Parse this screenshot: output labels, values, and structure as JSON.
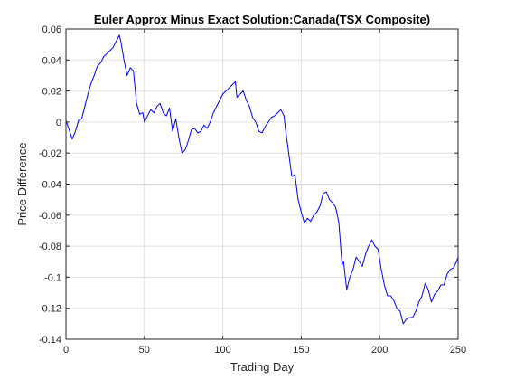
{
  "chart_data": {
    "type": "line",
    "title": "Euler Approx Minus Exact Solution:Canada(TSX Composite)",
    "xlabel": "Trading Day",
    "ylabel": "Price Difference",
    "xlim": [
      0,
      250
    ],
    "ylim": [
      -0.14,
      0.06
    ],
    "xticks": [
      "0",
      "50",
      "100",
      "150",
      "200",
      "250"
    ],
    "yticks": [
      "0.06",
      "0.04",
      "0.02",
      "0",
      "-0.02",
      "-0.04",
      "-0.06",
      "-0.08",
      "-0.1",
      "-0.12",
      "-0.14"
    ],
    "grid": true,
    "series": [
      {
        "color": "#0000ff",
        "x": [
          0,
          2,
          4,
          6,
          8,
          10,
          12,
          14,
          16,
          18,
          20,
          22,
          24,
          26,
          28,
          30,
          32,
          34,
          35,
          37,
          39,
          41,
          43,
          45,
          47,
          49,
          50,
          52,
          54,
          56,
          58,
          60,
          62,
          64,
          66,
          68,
          70,
          72,
          74,
          76,
          78,
          80,
          82,
          84,
          86,
          88,
          90,
          92,
          94,
          96,
          98,
          100,
          102,
          104,
          106,
          108,
          109,
          111,
          113,
          115,
          117,
          119,
          121,
          123,
          125,
          127,
          129,
          131,
          133,
          135,
          137,
          139,
          140,
          142,
          144,
          146,
          148,
          150,
          152,
          154,
          156,
          158,
          160,
          162,
          164,
          166,
          168,
          170,
          172,
          174,
          176,
          177,
          179,
          181,
          183,
          185,
          187,
          189,
          191,
          193,
          195,
          197,
          199,
          201,
          203,
          205,
          207,
          209,
          211,
          213,
          215,
          217,
          219,
          221,
          223,
          225,
          227,
          229,
          231,
          233,
          235,
          237,
          239,
          241,
          243,
          245,
          247,
          249,
          250
        ],
        "y": [
          0.001,
          -0.005,
          -0.011,
          -0.006,
          0.001,
          0.002,
          0.01,
          0.018,
          0.025,
          0.03,
          0.036,
          0.038,
          0.042,
          0.044,
          0.046,
          0.048,
          0.052,
          0.056,
          0.052,
          0.04,
          0.03,
          0.035,
          0.033,
          0.012,
          0.005,
          0.006,
          0.0,
          0.004,
          0.008,
          0.006,
          0.01,
          0.012,
          0.006,
          0.004,
          0.009,
          -0.006,
          0.002,
          -0.01,
          -0.02,
          -0.018,
          -0.012,
          -0.005,
          -0.004,
          -0.007,
          -0.006,
          -0.002,
          -0.004,
          0.0,
          0.006,
          0.01,
          0.014,
          0.018,
          0.02,
          0.022,
          0.024,
          0.026,
          0.016,
          0.018,
          0.02,
          0.014,
          0.01,
          0.003,
          0.0,
          -0.006,
          -0.007,
          -0.003,
          0.0,
          0.003,
          0.004,
          0.006,
          0.008,
          0.004,
          -0.005,
          -0.02,
          -0.035,
          -0.034,
          -0.05,
          -0.058,
          -0.065,
          -0.062,
          -0.064,
          -0.06,
          -0.058,
          -0.054,
          -0.046,
          -0.045,
          -0.05,
          -0.052,
          -0.055,
          -0.065,
          -0.092,
          -0.09,
          -0.108,
          -0.1,
          -0.095,
          -0.087,
          -0.09,
          -0.093,
          -0.085,
          -0.08,
          -0.076,
          -0.08,
          -0.082,
          -0.095,
          -0.105,
          -0.112,
          -0.112,
          -0.115,
          -0.12,
          -0.122,
          -0.13,
          -0.127,
          -0.126,
          -0.126,
          -0.122,
          -0.116,
          -0.112,
          -0.104,
          -0.108,
          -0.116,
          -0.111,
          -0.109,
          -0.105,
          -0.105,
          -0.098,
          -0.095,
          -0.094,
          -0.09,
          -0.087
        ]
      }
    ]
  }
}
